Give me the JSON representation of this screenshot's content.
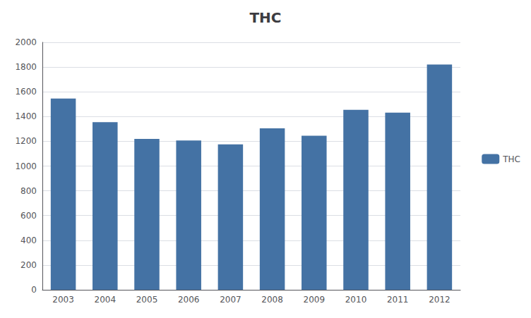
{
  "chart_data": {
    "type": "bar",
    "title": "THC",
    "categories": [
      "2003",
      "2004",
      "2005",
      "2006",
      "2007",
      "2008",
      "2009",
      "2010",
      "2011",
      "2012"
    ],
    "series": [
      {
        "name": "THC",
        "color": "#4472a4",
        "values": [
          1545,
          1355,
          1220,
          1207,
          1175,
          1305,
          1245,
          1455,
          1432,
          1821
        ]
      }
    ],
    "ylim": [
      0,
      2000
    ],
    "yticks": [
      0,
      200,
      400,
      600,
      800,
      1000,
      1200,
      1400,
      1600,
      1800,
      2000
    ],
    "grid": true,
    "legend": "right"
  }
}
